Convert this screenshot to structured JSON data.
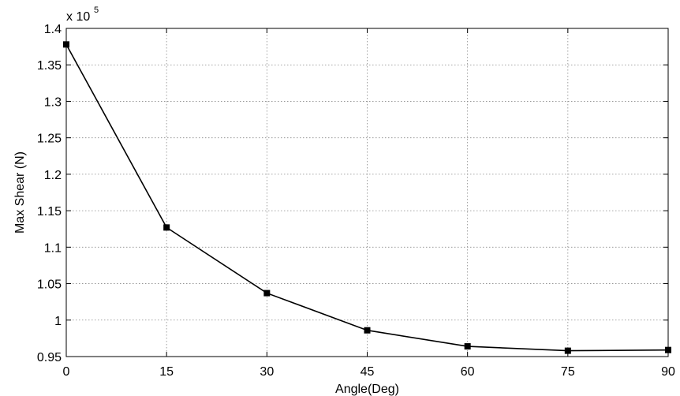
{
  "chart_data": {
    "type": "line",
    "xlabel": "Angle(Deg)",
    "ylabel": "Max Shear (N)",
    "y_multiplier_base": "x 10",
    "y_multiplier_exponent": "5",
    "xlim": [
      0,
      90
    ],
    "ylim": [
      0.95,
      1.4
    ],
    "x_ticks": [
      0,
      15,
      30,
      45,
      60,
      75,
      90
    ],
    "x_tick_labels": [
      "0",
      "15",
      "30",
      "45",
      "60",
      "75",
      "90"
    ],
    "y_ticks": [
      0.95,
      1.0,
      1.05,
      1.1,
      1.15,
      1.2,
      1.25,
      1.3,
      1.35,
      1.4
    ],
    "y_tick_labels": [
      "0.95",
      "1",
      "1.05",
      "1.1",
      "1.15",
      "1.2",
      "1.25",
      "1.3",
      "1.35",
      "1.4"
    ],
    "grid": true,
    "series": [
      {
        "x": [
          0,
          15,
          30,
          45,
          60,
          75,
          90
        ],
        "y": [
          1.378,
          1.127,
          1.037,
          0.986,
          0.964,
          0.958,
          0.959
        ],
        "marker": "square",
        "color": "#000000"
      }
    ]
  }
}
